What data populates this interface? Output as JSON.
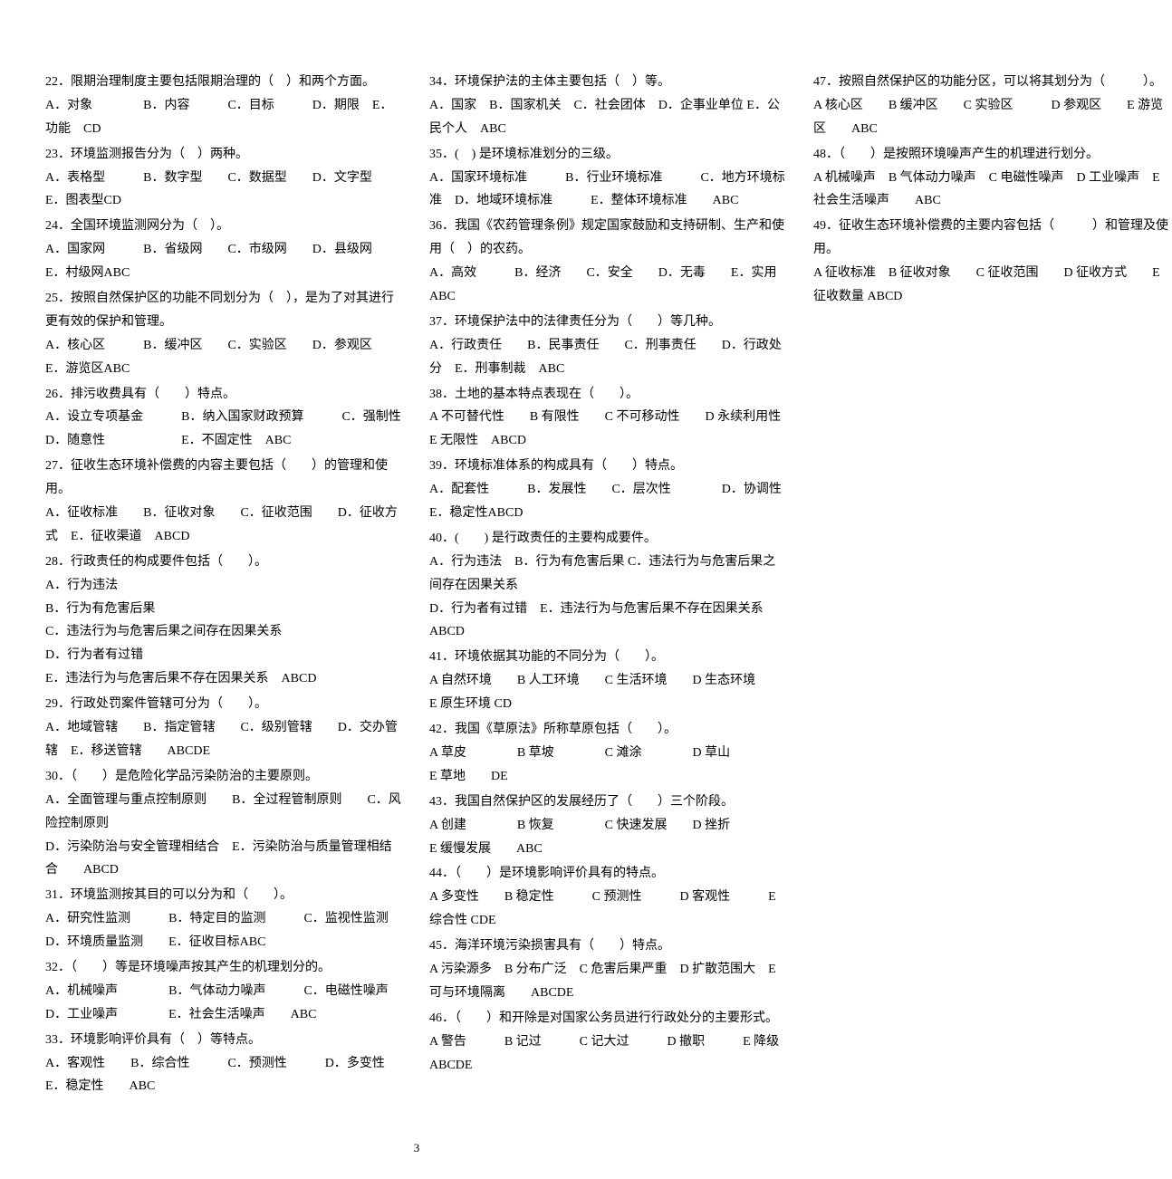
{
  "page_number": "3",
  "font": {
    "family_serif": "SimSun",
    "size_pt": 14,
    "line_height": 1.85
  },
  "colors": {
    "text": "#000000",
    "background": "#ffffff"
  },
  "questions": [
    {
      "num": "22",
      "stem": "22．限期治理制度主要包括限期治理的（　）和两个方面。",
      "opts": "A．对象　　　　B．内容　　　C．目标　　　D．期限　E．功能　CD"
    },
    {
      "num": "23",
      "stem": "23．环境监测报告分为（　）两种。",
      "opts": "A．表格型　　　B．数字型　　C．数据型　　D．文字型　E．图表型CD"
    },
    {
      "num": "24",
      "stem": "24．全国环境监测网分为（　）。",
      "opts": "A．国家网　　　B．省级网　　C．市级网　　D．县级网　E．村级网ABC"
    },
    {
      "num": "25",
      "stem": "25．按照自然保护区的功能不同划分为（　），是为了对其进行更有效的保护和管理。",
      "opts": "A．核心区　　　B．缓冲区　　C．实验区　　D．参观区　E．游览区ABC"
    },
    {
      "num": "26",
      "stem": "26．排污收费具有（　　）特点。",
      "opts": "A．设立专项基金　　　B．纳入国家财政预算　　　C．强制性　D．随意性　　　　　　E．不固定性　ABC"
    },
    {
      "num": "27",
      "stem": "27．征收生态环境补偿费的内容主要包括（　　）的管理和使用。",
      "opts": "A．征收标准　　B．征收对象　　C．征收范围　　D．征收方式　E．征收渠道　ABCD"
    },
    {
      "num": "28",
      "stem": "28．行政责任的构成要件包括（　　）。",
      "opts": "A．行为违法\nB．行为有危害后果\nC．违法行为与危害后果之间存在因果关系\nD．行为者有过错\nE．违法行为与危害后果不存在因果关系　ABCD"
    },
    {
      "num": "29",
      "stem": "29．行政处罚案件管辖可分为（　　）。",
      "opts": "A．地域管辖　　B．指定管辖　　C．级别管辖　　D．交办管辖　E．移送管辖　　ABCDE"
    },
    {
      "num": "30",
      "stem": "30．（　　）是危险化学品污染防治的主要原则。",
      "opts": "A．全面管理与重点控制原则　　B．全过程管制原则　　C．风险控制原则\nD．污染防治与安全管理相结合　E．污染防治与质量管理相结合　　ABCD"
    },
    {
      "num": "31",
      "stem": "31．环境监测按其目的可以分为和（　　）。",
      "opts": "A．研究性监测　　　B．特定目的监测　　　C．监视性监测　D．环境质量监测　　E．征收目标ABC"
    },
    {
      "num": "32",
      "stem": "32．（　　）等是环境噪声按其产生的机理划分的。",
      "opts": "A．机械噪声　　　　B．气体动力噪声　　　C．电磁性噪声　D．工业噪声　　　　E．社会生活噪声　　ABC"
    },
    {
      "num": "33",
      "stem": "33．环境影响评价具有（　）等特点。",
      "opts": "A．客观性　　B．综合性　　　C．预测性　　　D．多变性　E．稳定性　　ABC"
    },
    {
      "num": "34",
      "stem": "34．环境保护法的主体主要包括（　）等。",
      "opts": "A．国家　B．国家机关　C．社会团体　D．企事业单位 E．公民个人　ABC"
    },
    {
      "num": "35",
      "stem": "35．(　) 是环境标准划分的三级。",
      "opts": "A．国家环境标准　　　B．行业环境标准　　　C．地方环境标准　D．地域环境标准　　　E．整体环境标准　　ABC"
    },
    {
      "num": "36",
      "stem": "36．我国《农药管理条例》规定国家鼓励和支持研制、生产和使用（　）的农药。",
      "opts": "A．高效　　　B．经济　　C．安全　　D．无毒　　E．实用　　ABC"
    },
    {
      "num": "37",
      "stem": "37．环境保护法中的法律责任分为（　　）等几种。",
      "opts": "A．行政责任　　B．民事责任　　C．刑事责任　　D．行政处分　E．刑事制裁　ABC"
    },
    {
      "num": "38",
      "stem": "38．土地的基本特点表现在（　　）。",
      "opts": "A 不可替代性　　B 有限性　　C 不可移动性　　D 永续利用性　　E 无限性　ABCD"
    },
    {
      "num": "39",
      "stem": "39．环境标准体系的构成具有（　　）特点。",
      "opts": "A．配套性　　　B．发展性　　C．层次性　　　　D．协调性　E．稳定性ABCD"
    },
    {
      "num": "40",
      "stem": "40．(　　) 是行政责任的主要构成要件。",
      "opts": "A．行为违法　B．行为有危害后果 C．违法行为与危害后果之间存在因果关系\nD．行为者有过错　E．违法行为与危害后果不存在因果关系　　ABCD"
    },
    {
      "num": "41",
      "stem": "41．环境依据其功能的不同分为（　　）。",
      "opts": "A 自然环境　　B 人工环境　　C 生活环境　　D 生态环境　　E 原生环境 CD"
    },
    {
      "num": "42",
      "stem": "42．我国《草原法》所称草原包括（　　）。",
      "opts": "A 草皮　　　　B 草坡　　　　C 滩涂　　　　D 草山　　　　E 草地　　DE"
    },
    {
      "num": "43",
      "stem": "43．我国自然保护区的发展经历了（　　）三个阶段。",
      "opts": "A 创建　　　　B 恢复　　　　C 快速发展　　D 挫折　　　　E 缓慢发展　　ABC"
    },
    {
      "num": "44",
      "stem": "44．（　　）是环境影响评价具有的特点。",
      "opts": "A 多变性　　B 稳定性　　　C 预测性　　　D 客观性　　　E 综合性 CDE"
    },
    {
      "num": "45",
      "stem": "45．海洋环境污染损害具有（　　）特点。",
      "opts": "A 污染源多　B 分布广泛　C 危害后果严重　D 扩散范围大　E 可与环境隔离　　ABCDE"
    },
    {
      "num": "46",
      "stem": "46．（　　）和开除是对国家公务员进行行政处分的主要形式。",
      "opts": "A 警告　　　B 记过　　　C 记大过　　　D 撤职　　　E 降级　　ABCDE"
    },
    {
      "num": "47",
      "stem": "47．按照自然保护区的功能分区，可以将其划分为（　　　）。",
      "opts": "A 核心区　　B 缓冲区　　C 实验区　　　D 参观区　　E 游览区　　ABC"
    },
    {
      "num": "48",
      "stem": "48．（　　）是按照环境噪声产生的机理进行划分。",
      "opts": "A 机械噪声　B 气体动力噪声　C 电磁性噪声　D 工业噪声　E 社会生活噪声　　ABC"
    },
    {
      "num": "49",
      "stem": "49．征收生态环境补偿费的主要内容包括（　　　）和管理及使用。",
      "opts": "A 征收标准　B 征收对象　　C 征收范围　　D 征收方式　　E 征收数量 ABCD"
    }
  ]
}
